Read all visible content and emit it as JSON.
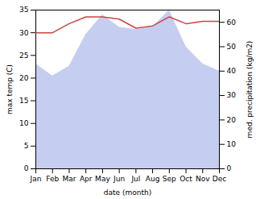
{
  "chart_data": {
    "type": "line",
    "categories": [
      "Jan",
      "Feb",
      "Mar",
      "Apr",
      "May",
      "Jun",
      "Jul",
      "Aug",
      "Sep",
      "Oct",
      "Nov",
      "Dec"
    ],
    "xlabel": "date (month)",
    "ylabel": "max temp (C)",
    "y2label": "med. precipitation (kg/m2)",
    "ylim": [
      0,
      35
    ],
    "yticks": [
      0,
      5,
      10,
      15,
      20,
      25,
      30,
      35
    ],
    "y2lim": [
      0,
      65
    ],
    "y2ticks": [
      0,
      10,
      20,
      30,
      40,
      50,
      60
    ],
    "series": [
      {
        "type": "area",
        "axis": "y2",
        "color": "#c5cef0",
        "values": [
          43,
          38,
          42,
          55,
          63,
          58,
          57,
          58,
          65,
          50,
          43,
          40
        ]
      },
      {
        "type": "line",
        "color": "#cc4444",
        "values": [
          30.0,
          30.0,
          32.0,
          33.5,
          33.5,
          33.0,
          31.0,
          31.5,
          33.5,
          32.0,
          32.5,
          32.5
        ]
      }
    ]
  }
}
